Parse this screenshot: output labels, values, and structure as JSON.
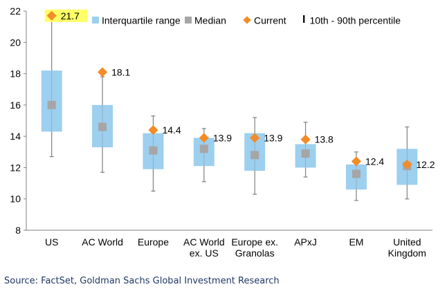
{
  "chart_data": {
    "type": "box",
    "categories": [
      "US",
      "AC World",
      "Europe",
      "AC World\nex. US",
      "Europe ex.\nGranolas",
      "APxJ",
      "EM",
      "United\nKingdom"
    ],
    "p10": [
      12.7,
      11.7,
      10.5,
      11.1,
      10.3,
      11.4,
      9.9,
      10.0
    ],
    "q1": [
      14.3,
      13.3,
      11.9,
      12.1,
      11.8,
      12.0,
      10.6,
      10.9
    ],
    "median": [
      16.0,
      14.6,
      13.1,
      13.2,
      12.8,
      12.9,
      11.6,
      12.1
    ],
    "q3": [
      18.2,
      16.0,
      14.2,
      13.9,
      14.2,
      13.5,
      12.2,
      13.2
    ],
    "p90": [
      22.0,
      17.8,
      15.3,
      14.5,
      15.2,
      14.9,
      13.0,
      14.6
    ],
    "current": [
      21.7,
      18.1,
      14.4,
      13.9,
      13.9,
      13.8,
      12.4,
      12.2
    ],
    "current_labels": [
      "21.7",
      "18.1",
      "14.4",
      "13.9",
      "13.9",
      "13.8",
      "12.4",
      "12.2"
    ],
    "ylim": [
      8,
      22
    ],
    "yticks": [
      "8",
      "10",
      "12",
      "14",
      "16",
      "18",
      "20",
      "22"
    ],
    "grid": false,
    "legend": [
      "Interquartile range",
      "Median",
      "Current",
      "10th - 90th percentile"
    ],
    "legend_position": "top",
    "highlighted_label": "21.7"
  },
  "source": "Source: FactSet, Goldman Sachs Global Investment Research",
  "colors": {
    "box": "#9dcfef",
    "median": "#a6a6a6",
    "current": "#f28c28",
    "whisker": "#7f7f7f",
    "highlight": "#ffff66",
    "axis": "#808080"
  }
}
